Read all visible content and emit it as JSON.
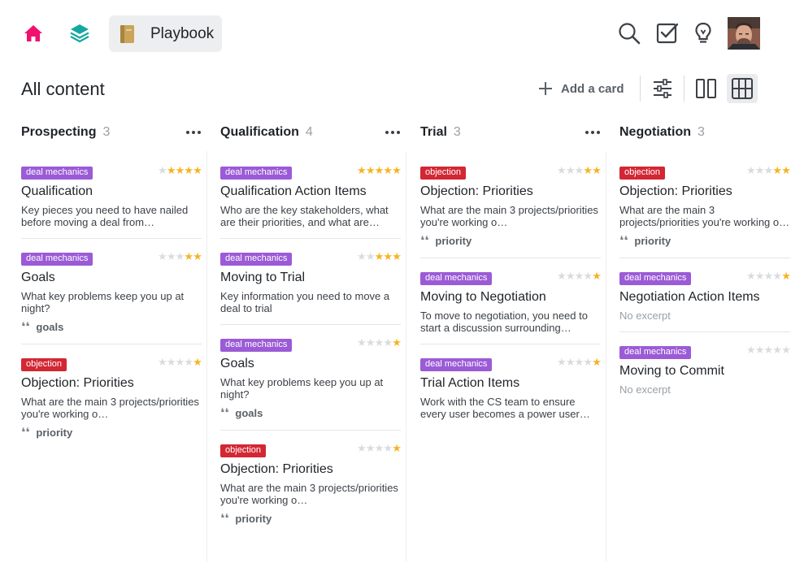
{
  "nav": {
    "playbook_label": "Playbook",
    "icons": [
      "home-icon",
      "layers-icon",
      "book-icon",
      "search-icon",
      "tasks-icon",
      "lightbulb-icon",
      "avatar"
    ],
    "accent_home": "#f0106e",
    "accent_layers": "#14a7a0"
  },
  "header": {
    "title": "All content",
    "add_card_label": "Add a card"
  },
  "columns": [
    {
      "title": "Prospecting",
      "count": "3",
      "cards": [
        {
          "tag": "deal mechanics",
          "tag_type": "deal",
          "stars": 4,
          "title": "Qualification",
          "excerpt": "Key pieces you need to have nailed before moving a deal from…",
          "quote": ""
        },
        {
          "tag": "deal mechanics",
          "tag_type": "deal",
          "stars": 2,
          "title": "Goals",
          "excerpt": "What key problems keep you up at night?",
          "quote": "goals"
        },
        {
          "tag": "objection",
          "tag_type": "objection",
          "stars": 1,
          "title": "Objection: Priorities",
          "excerpt": "What are the main 3 projects/priorities you're working o…",
          "quote": "priority"
        }
      ]
    },
    {
      "title": "Qualification",
      "count": "4",
      "cards": [
        {
          "tag": "deal mechanics",
          "tag_type": "deal",
          "stars": 5,
          "title": "Qualification Action Items",
          "excerpt": "Who are the key stakeholders, what are their priorities, and what are…",
          "quote": ""
        },
        {
          "tag": "deal mechanics",
          "tag_type": "deal",
          "stars": 3,
          "title": "Moving to Trial",
          "excerpt": "Key information you need to move a deal to trial",
          "quote": ""
        },
        {
          "tag": "deal mechanics",
          "tag_type": "deal",
          "stars": 1,
          "title": "Goals",
          "excerpt": "What key problems keep you up at night?",
          "quote": "goals"
        },
        {
          "tag": "objection",
          "tag_type": "objection",
          "stars": 1,
          "title": "Objection: Priorities",
          "excerpt": "What are the main 3 projects/priorities you're working o…",
          "quote": "priority"
        }
      ]
    },
    {
      "title": "Trial",
      "count": "3",
      "cards": [
        {
          "tag": "objection",
          "tag_type": "objection",
          "stars": 2,
          "title": "Objection: Priorities",
          "excerpt": "What are the main 3 projects/priorities you're working o…",
          "quote": "priority"
        },
        {
          "tag": "deal mechanics",
          "tag_type": "deal",
          "stars": 1,
          "title": "Moving to Negotiation",
          "excerpt": "To move to negotiation, you need to start a discussion surrounding…",
          "quote": ""
        },
        {
          "tag": "deal mechanics",
          "tag_type": "deal",
          "stars": 1,
          "title": "Trial Action Items",
          "excerpt": "Work with the CS team to ensure every user becomes a power user…",
          "quote": ""
        }
      ]
    },
    {
      "title": "Negotiation",
      "count": "3",
      "cards": [
        {
          "tag": "objection",
          "tag_type": "objection",
          "stars": 2,
          "title": "Objection: Priorities",
          "excerpt": "What are the main 3 projects/priorities you're working o…",
          "quote": "priority"
        },
        {
          "tag": "deal mechanics",
          "tag_type": "deal",
          "stars": 1,
          "title": "Negotiation Action Items",
          "excerpt": "No excerpt",
          "empty": true,
          "quote": ""
        },
        {
          "tag": "deal mechanics",
          "tag_type": "deal",
          "stars": 0,
          "title": "Moving to Commit",
          "excerpt": "No excerpt",
          "empty": true,
          "quote": ""
        }
      ]
    }
  ]
}
